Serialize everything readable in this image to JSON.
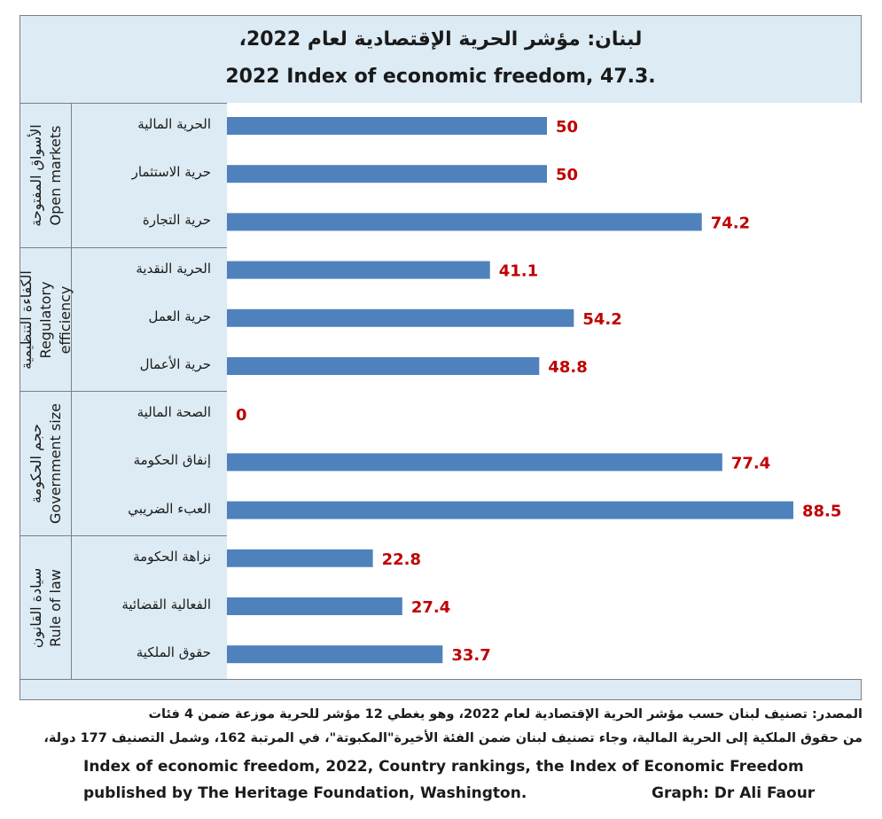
{
  "title_ar": "لبنان: مؤشر الحرية الإقتصادية لعام 2022،",
  "title_en": "2022 Index of economic freedom, 47.3.",
  "groups": [
    {
      "ar": "الأسواق المفتوحة",
      "en": "Open markets"
    },
    {
      "ar": "الكفاءة التنظيمية",
      "en": "Regulatory efficiency"
    },
    {
      "ar": "حجم الحكومة",
      "en": "Government size"
    },
    {
      "ar": "سيادة القانون",
      "en": "Rule of law"
    }
  ],
  "chart_data": {
    "type": "bar",
    "orientation": "horizontal",
    "categories": [
      "الحرية المالية",
      "حرية الاستثمار",
      "حرية التجارة",
      "الحرية النقدية",
      "حرية العمل",
      "حرية الأعمال",
      "الصحة المالية",
      "إنفاق الحكومة",
      "العبء الضريبي",
      "نزاهة الحكومة",
      "الفعالية القضائية",
      "حقوق الملكية"
    ],
    "values": [
      50,
      50,
      74.2,
      41.1,
      54.2,
      48.8,
      0,
      77.4,
      88.5,
      22.8,
      27.4,
      33.7
    ],
    "value_labels": [
      "50",
      "50",
      "74.2",
      "41.1",
      "54.2",
      "48.8",
      "0",
      "77.4",
      "88.5",
      "22.8",
      "27.4",
      "33.7"
    ],
    "xlim": [
      0,
      100
    ],
    "bar_color": "#4f81bd",
    "label_color": "#c00000",
    "grid": false,
    "legend": false
  },
  "footer": {
    "ar_line1": "المصدر:  تصنيف لبنان حسب مؤشر الحرية الإقتصادية لعام 2022، وهو يغطي 12 مؤشر للحرية موزعة ضمن 4 فئات",
    "ar_line2": "من حقوق الملكية إلى الحرية المالية، وجاء تصنيف لبنان ضمن الفئة الأخيرة\"المكبوتة\"، في المرتبة 162، وشمل التصنيف 177 دولة،",
    "en_line1": "Index of economic freedom, 2022, Country rankings, the Index of Economic Freedom",
    "en_line2": "published by The Heritage Foundation, Washington.",
    "credit": "Graph: Dr Ali Faour"
  }
}
